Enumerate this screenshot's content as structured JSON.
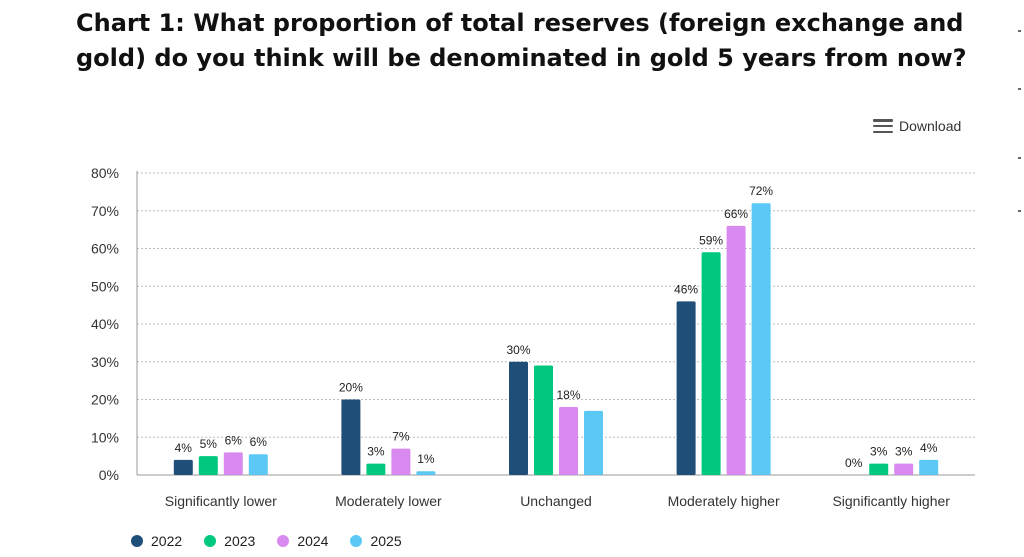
{
  "title": "Chart 1: What proportion of total reserves (foreign exchange and gold) do you think will be denominated in gold 5 years from now?",
  "download_label": "Download",
  "colors": {
    "2022": "#1f4e79",
    "2023": "#00c97f",
    "2024": "#d98af0",
    "2025": "#5bc8f5"
  },
  "chart_data": {
    "type": "bar",
    "categories": [
      "Significantly lower",
      "Moderately lower",
      "Unchanged",
      "Moderately higher",
      "Significantly higher"
    ],
    "series": [
      {
        "name": "2022",
        "values": [
          4,
          20,
          30,
          46,
          0
        ],
        "labels": [
          "4%",
          "20%",
          "30%",
          "46%",
          "0%"
        ]
      },
      {
        "name": "2023",
        "values": [
          5,
          3,
          29,
          59,
          3
        ],
        "labels": [
          "5%",
          "3%",
          "",
          "59%",
          "3%"
        ]
      },
      {
        "name": "2024",
        "values": [
          6,
          7,
          18,
          66,
          3
        ],
        "labels": [
          "6%",
          "7%",
          "18%",
          "66%",
          "3%"
        ]
      },
      {
        "name": "2025",
        "values": [
          5.5,
          1,
          17,
          72,
          4
        ],
        "labels": [
          "6%",
          "1%",
          "",
          "72%",
          "4%"
        ]
      }
    ],
    "yticks": [
      "0%",
      "10%",
      "20%",
      "30%",
      "40%",
      "50%",
      "60%",
      "70%",
      "80%"
    ],
    "ylim": [
      0,
      80
    ],
    "grid": true,
    "legend": "bottom-left"
  }
}
